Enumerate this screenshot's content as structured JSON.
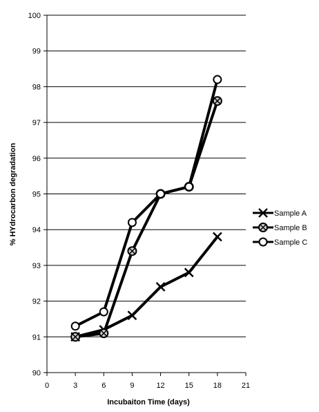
{
  "chart_data": {
    "type": "line",
    "title": "",
    "xlabel": "Incubaiton Time (days)",
    "ylabel": "% HYdrocarbon degradation",
    "xlim": [
      0,
      21
    ],
    "ylim": [
      90,
      100
    ],
    "xticks": [
      0,
      3,
      6,
      9,
      12,
      15,
      18,
      21
    ],
    "yticks": [
      90,
      91,
      92,
      93,
      94,
      95,
      96,
      97,
      98,
      99,
      100
    ],
    "grid": "horizontal",
    "legend_position": "right",
    "series": [
      {
        "name": "Sample A",
        "marker": "x",
        "color": "#000000",
        "x": [
          3,
          6,
          9,
          12,
          15,
          18
        ],
        "y": [
          91.0,
          91.2,
          91.6,
          92.4,
          92.8,
          93.8
        ]
      },
      {
        "name": "Sample B",
        "marker": "circle-x",
        "color": "#000000",
        "x": [
          3,
          6,
          9,
          12,
          15,
          18
        ],
        "y": [
          91.0,
          91.1,
          93.4,
          95.0,
          95.2,
          97.6
        ]
      },
      {
        "name": "Sample C",
        "marker": "circle",
        "color": "#000000",
        "x": [
          3,
          6,
          9,
          12,
          15,
          18
        ],
        "y": [
          91.3,
          91.7,
          94.2,
          95.0,
          95.2,
          98.2
        ]
      }
    ]
  }
}
